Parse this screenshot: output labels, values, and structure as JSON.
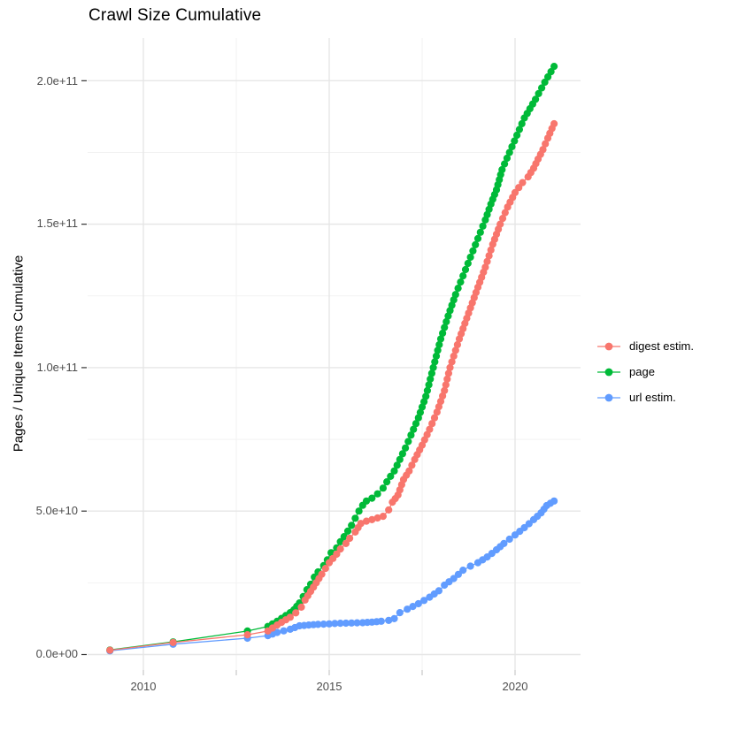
{
  "title": "Crawl Size Cumulative",
  "axes": {
    "y_title": "Pages / Unique Items Cumulative",
    "y_tick_labels": [
      "2.0e+11",
      "1.5e+11",
      "1.0e+11",
      "5.0e+10",
      "0.0e+00"
    ],
    "x_tick_labels": [
      "2010",
      "2015",
      "2020"
    ]
  },
  "colors": {
    "digest": "#F8766D",
    "page": "#00BA38",
    "url": "#619CFF",
    "grid_major": "#e6e6e6",
    "grid_minor": "#f2f2f2",
    "axis_tick": "#333333",
    "grid_stub": "#c9c9c9",
    "tick_label": "#4d4d4d"
  },
  "chart_data": {
    "type": "scatter",
    "style": "points connected by thin lines (ggplot-like cumulative curve)",
    "title": "Crawl Size Cumulative",
    "xlabel": "",
    "ylabel": "Pages / Unique Items Cumulative",
    "x_range": [
      2008.5,
      2021.8
    ],
    "y_range": [
      0,
      215000000000.0
    ],
    "x_tick_values": [
      2010,
      2015,
      2020
    ],
    "x_minor_tick_values": [
      2012.5,
      2017.5
    ],
    "y_tick_values": [
      0,
      50000000000.0,
      100000000000.0,
      150000000000.0,
      200000000000.0
    ],
    "y_minor_tick_values": [
      25000000000.0,
      75000000000.0,
      125000000000.0,
      175000000000.0
    ],
    "grid": true,
    "legend_position": "right-center",
    "values_unit": "cumulative count, stored as billions (1e9)",
    "series": [
      {
        "name": "digest estim.",
        "color": "#F8766D",
        "points": [
          [
            2009.1,
            1.5
          ],
          [
            2010.8,
            4.2
          ],
          [
            2012.8,
            6.9
          ],
          [
            2013.35,
            8.2
          ],
          [
            2013.6,
            10.3
          ],
          [
            2013.95,
            13
          ],
          [
            2014.1,
            14.5
          ],
          [
            2014.25,
            16.5
          ],
          [
            2014.35,
            19
          ],
          [
            2014.5,
            22
          ],
          [
            2014.65,
            25
          ],
          [
            2014.8,
            28
          ],
          [
            2014.9,
            30
          ],
          [
            2015,
            32
          ],
          [
            2015.1,
            33.5
          ],
          [
            2015.2,
            35
          ],
          [
            2015.3,
            36.8
          ],
          [
            2015.45,
            38.7
          ],
          [
            2015.55,
            40.5
          ],
          [
            2015.7,
            42.7
          ],
          [
            2015.85,
            45.7
          ],
          [
            2016,
            46.5
          ],
          [
            2016.15,
            47
          ],
          [
            2016.3,
            47.6
          ],
          [
            2016.45,
            48.2
          ],
          [
            2016.6,
            50.4
          ],
          [
            2016.7,
            53.1
          ],
          [
            2016.85,
            55.6
          ],
          [
            2017,
            61
          ],
          [
            2017.15,
            64
          ],
          [
            2017.3,
            68
          ],
          [
            2017.5,
            73
          ],
          [
            2017.7,
            78.5
          ],
          [
            2017.9,
            84.5
          ],
          [
            2018.1,
            92
          ],
          [
            2018.25,
            100
          ],
          [
            2018.5,
            110
          ],
          [
            2018.75,
            119
          ],
          [
            2019,
            128
          ],
          [
            2019.2,
            135
          ],
          [
            2019.4,
            143
          ],
          [
            2019.6,
            150
          ],
          [
            2019.8,
            156
          ],
          [
            2020,
            161
          ],
          [
            2020.2,
            164.5
          ],
          [
            2020.35,
            166.5
          ],
          [
            2020.5,
            169.5
          ],
          [
            2020.62,
            172.7
          ],
          [
            2020.75,
            176
          ],
          [
            2020.88,
            180
          ],
          [
            2021.05,
            185
          ]
        ]
      },
      {
        "name": "page",
        "color": "#00BA38",
        "points": [
          [
            2009.1,
            1.6
          ],
          [
            2010.8,
            4.4
          ],
          [
            2012.8,
            8.2
          ],
          [
            2013.35,
            9.8
          ],
          [
            2013.6,
            11.6
          ],
          [
            2013.95,
            14.6
          ],
          [
            2014.05,
            15.6
          ],
          [
            2014.2,
            18
          ],
          [
            2014.3,
            20.2
          ],
          [
            2014.4,
            22.6
          ],
          [
            2014.5,
            24.5
          ],
          [
            2014.6,
            27
          ],
          [
            2014.7,
            28.8
          ],
          [
            2014.85,
            31
          ],
          [
            2014.95,
            33
          ],
          [
            2015.05,
            35.5
          ],
          [
            2015.2,
            37.2
          ],
          [
            2015.3,
            39.3
          ],
          [
            2015.4,
            41.1
          ],
          [
            2015.5,
            43
          ],
          [
            2015.6,
            45
          ],
          [
            2015.7,
            47.5
          ],
          [
            2015.8,
            50
          ],
          [
            2015.9,
            52
          ],
          [
            2016,
            53.5
          ],
          [
            2016.15,
            54.5
          ],
          [
            2016.3,
            56
          ],
          [
            2016.45,
            58
          ],
          [
            2016.55,
            60.2
          ],
          [
            2016.75,
            64
          ],
          [
            2016.9,
            68
          ],
          [
            2017.05,
            72
          ],
          [
            2017.2,
            76.5
          ],
          [
            2017.4,
            82.5
          ],
          [
            2017.6,
            90
          ],
          [
            2017.8,
            100
          ],
          [
            2018,
            110
          ],
          [
            2018.2,
            118
          ],
          [
            2018.4,
            125.5
          ],
          [
            2018.6,
            132
          ],
          [
            2018.8,
            138.5
          ],
          [
            2019,
            145
          ],
          [
            2019.2,
            151.5
          ],
          [
            2019.35,
            157
          ],
          [
            2019.5,
            162
          ],
          [
            2019.65,
            169
          ],
          [
            2019.85,
            175
          ],
          [
            2020.05,
            181
          ],
          [
            2020.25,
            187
          ],
          [
            2020.55,
            193.5
          ],
          [
            2020.8,
            199.5
          ],
          [
            2021.05,
            205
          ]
        ]
      },
      {
        "name": "url estim.",
        "color": "#619CFF",
        "points": [
          [
            2009.1,
            1.3
          ],
          [
            2010.8,
            3.6
          ],
          [
            2012.8,
            5.7
          ],
          [
            2013.35,
            6.6
          ],
          [
            2013.6,
            7.7
          ],
          [
            2013.95,
            8.8
          ],
          [
            2014.2,
            10
          ],
          [
            2014.45,
            10.3
          ],
          [
            2014.7,
            10.5
          ],
          [
            2015,
            10.7
          ],
          [
            2015.3,
            10.9
          ],
          [
            2015.6,
            11
          ],
          [
            2015.9,
            11.1
          ],
          [
            2016.15,
            11.3
          ],
          [
            2016.4,
            11.6
          ],
          [
            2016.6,
            11.9
          ],
          [
            2016.75,
            12.5
          ],
          [
            2016.9,
            14.6
          ],
          [
            2017.1,
            15.8
          ],
          [
            2017.4,
            17.7
          ],
          [
            2017.7,
            20
          ],
          [
            2017.95,
            22.2
          ],
          [
            2018.1,
            24.2
          ],
          [
            2018.35,
            26.5
          ],
          [
            2018.6,
            29.4
          ],
          [
            2018.8,
            30.8
          ],
          [
            2019,
            32
          ],
          [
            2019.25,
            34
          ],
          [
            2019.5,
            36.5
          ],
          [
            2019.7,
            38.7
          ],
          [
            2020,
            41.7
          ],
          [
            2020.25,
            44.2
          ],
          [
            2020.5,
            47
          ],
          [
            2020.7,
            49.4
          ],
          [
            2020.85,
            51.9
          ],
          [
            2021.05,
            53.5
          ]
        ]
      }
    ]
  }
}
